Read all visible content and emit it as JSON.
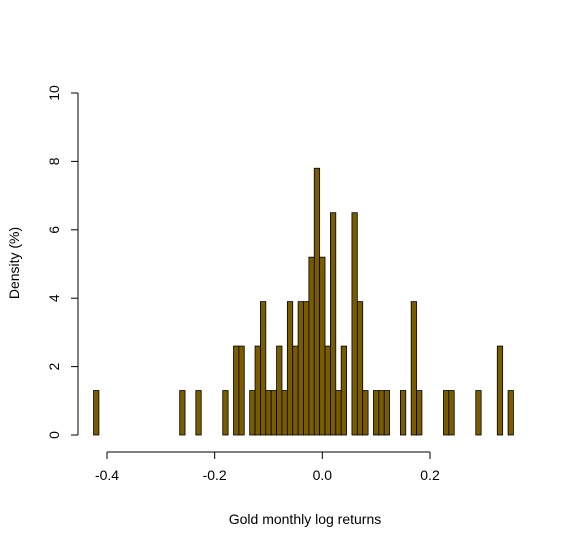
{
  "chart_data": {
    "type": "bar",
    "title": "",
    "xlabel": "Gold monthly log returns",
    "ylabel": "Density (%)",
    "xlim": [
      -0.43,
      0.37
    ],
    "ylim": [
      0,
      10
    ],
    "x_ticks": [
      "-0.4",
      "-0.2",
      "0.0",
      "0.2"
    ],
    "x_tick_values": [
      -0.4,
      -0.2,
      0.0,
      0.2
    ],
    "y_ticks": [
      "0",
      "2",
      "4",
      "6",
      "8",
      "10"
    ],
    "y_tick_values": [
      0,
      2,
      4,
      6,
      8,
      10
    ],
    "grid": false,
    "bin_width": 0.01,
    "bar_color": "#7a5c00",
    "bars": [
      {
        "x": -0.42,
        "value": 1.3
      },
      {
        "x": -0.26,
        "value": 1.3
      },
      {
        "x": -0.23,
        "value": 1.3
      },
      {
        "x": -0.18,
        "value": 1.3
      },
      {
        "x": -0.16,
        "value": 2.6
      },
      {
        "x": -0.15,
        "value": 2.6
      },
      {
        "x": -0.13,
        "value": 1.3
      },
      {
        "x": -0.12,
        "value": 2.6
      },
      {
        "x": -0.11,
        "value": 3.9
      },
      {
        "x": -0.1,
        "value": 1.3
      },
      {
        "x": -0.09,
        "value": 1.3
      },
      {
        "x": -0.08,
        "value": 2.6
      },
      {
        "x": -0.07,
        "value": 1.3
      },
      {
        "x": -0.06,
        "value": 3.9
      },
      {
        "x": -0.05,
        "value": 2.6
      },
      {
        "x": -0.04,
        "value": 3.9
      },
      {
        "x": -0.03,
        "value": 3.9
      },
      {
        "x": -0.02,
        "value": 5.2
      },
      {
        "x": -0.01,
        "value": 7.8
      },
      {
        "x": 0.0,
        "value": 5.2
      },
      {
        "x": 0.01,
        "value": 2.6
      },
      {
        "x": 0.02,
        "value": 6.5
      },
      {
        "x": 0.03,
        "value": 1.3
      },
      {
        "x": 0.04,
        "value": 2.6
      },
      {
        "x": 0.06,
        "value": 6.5
      },
      {
        "x": 0.07,
        "value": 3.9
      },
      {
        "x": 0.08,
        "value": 1.3
      },
      {
        "x": 0.1,
        "value": 1.3
      },
      {
        "x": 0.11,
        "value": 1.3
      },
      {
        "x": 0.12,
        "value": 1.3
      },
      {
        "x": 0.15,
        "value": 1.3
      },
      {
        "x": 0.17,
        "value": 3.9
      },
      {
        "x": 0.18,
        "value": 1.3
      },
      {
        "x": 0.23,
        "value": 1.3
      },
      {
        "x": 0.24,
        "value": 1.3
      },
      {
        "x": 0.29,
        "value": 1.3
      },
      {
        "x": 0.33,
        "value": 2.6
      },
      {
        "x": 0.35,
        "value": 1.3
      }
    ]
  }
}
